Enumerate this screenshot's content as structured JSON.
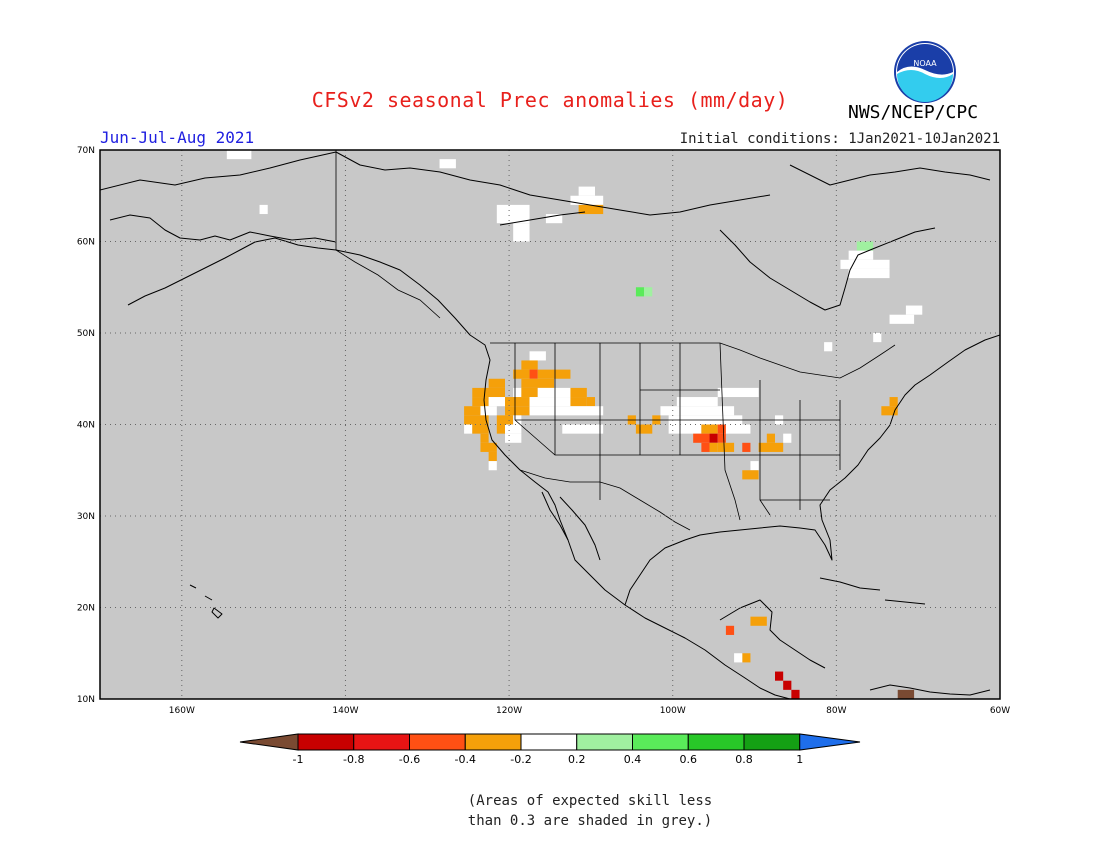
{
  "header": {
    "title": "CFSv2 seasonal Prec anomalies (mm/day)",
    "title_color": "#e8201c",
    "agency": "NWS/NCEP/CPC",
    "period": "Jun-Jul-Aug 2021",
    "period_color": "#2020e0",
    "initial_conditions": "Initial conditions: 1Jan2021-10Jan2021"
  },
  "logo": {
    "icon": "noaa-logo-icon",
    "text": "NOAA"
  },
  "map": {
    "lon_range": [
      -170,
      -60
    ],
    "lat_range": [
      10,
      70
    ],
    "background": "#c8c8c8",
    "lat_labels": [
      "70N",
      "60N",
      "50N",
      "40N",
      "30N",
      "20N",
      "10N"
    ],
    "lat_values": [
      70,
      60,
      50,
      40,
      30,
      20,
      10
    ],
    "lon_labels": [
      "160W",
      "140W",
      "120W",
      "100W",
      "80W",
      "60W"
    ],
    "lon_values": [
      -160,
      -140,
      -120,
      -100,
      -80,
      -60
    ],
    "anomaly_cells": [
      {
        "lon": -154,
        "lat": 69.5,
        "w": 3,
        "h": 1,
        "color": "#ffffff"
      },
      {
        "lon": -150,
        "lat": 63.5,
        "w": 1,
        "h": 1,
        "color": "#ffffff"
      },
      {
        "lon": -128,
        "lat": 68.5,
        "w": 2,
        "h": 1,
        "color": "#ffffff"
      },
      {
        "lon": -121,
        "lat": 63.5,
        "w": 4,
        "h": 2,
        "color": "#ffffff"
      },
      {
        "lon": -119,
        "lat": 61.5,
        "w": 2,
        "h": 2,
        "color": "#ffffff"
      },
      {
        "lon": -115,
        "lat": 62.5,
        "w": 2,
        "h": 1,
        "color": "#ffffff"
      },
      {
        "lon": -111,
        "lat": 65.5,
        "w": 2,
        "h": 1,
        "color": "#ffffff"
      },
      {
        "lon": -112,
        "lat": 64.5,
        "w": 4,
        "h": 1,
        "color": "#ffffff"
      },
      {
        "lon": -111,
        "lat": 63.5,
        "w": 3,
        "h": 1,
        "color": "#f5a00a"
      },
      {
        "lon": -104,
        "lat": 54.5,
        "w": 1,
        "h": 1,
        "color": "#5aeb5a"
      },
      {
        "lon": -103,
        "lat": 54.5,
        "w": 1,
        "h": 1,
        "color": "#a0f0a0"
      },
      {
        "lon": -77,
        "lat": 59.5,
        "w": 2,
        "h": 1,
        "color": "#a0f0a0"
      },
      {
        "lon": -78,
        "lat": 58.5,
        "w": 3,
        "h": 1,
        "color": "#ffffff"
      },
      {
        "lon": -79,
        "lat": 57.5,
        "w": 6,
        "h": 1,
        "color": "#ffffff"
      },
      {
        "lon": -78,
        "lat": 56.5,
        "w": 5,
        "h": 1,
        "color": "#ffffff"
      },
      {
        "lon": -71,
        "lat": 52.5,
        "w": 2,
        "h": 1,
        "color": "#ffffff"
      },
      {
        "lon": -73,
        "lat": 51.5,
        "w": 3,
        "h": 1,
        "color": "#ffffff"
      },
      {
        "lon": -81,
        "lat": 48.5,
        "w": 1,
        "h": 1,
        "color": "#ffffff"
      },
      {
        "lon": -75,
        "lat": 49.5,
        "w": 1,
        "h": 1,
        "color": "#ffffff"
      },
      {
        "lon": -117,
        "lat": 47.5,
        "w": 2,
        "h": 1,
        "color": "#ffffff"
      },
      {
        "lon": -118,
        "lat": 46.5,
        "w": 2,
        "h": 1,
        "color": "#f5a00a"
      },
      {
        "lon": -119,
        "lat": 45.5,
        "w": 2,
        "h": 1,
        "color": "#f5a00a"
      },
      {
        "lon": -117,
        "lat": 45.5,
        "w": 1,
        "h": 1,
        "color": "#ff5014"
      },
      {
        "lon": -116,
        "lat": 45.5,
        "w": 2,
        "h": 1,
        "color": "#f5a00a"
      },
      {
        "lon": -114,
        "lat": 45.5,
        "w": 2,
        "h": 1,
        "color": "#f5a00a"
      },
      {
        "lon": -118,
        "lat": 44.5,
        "w": 4,
        "h": 1,
        "color": "#f5a00a"
      },
      {
        "lon": -122,
        "lat": 44.5,
        "w": 2,
        "h": 1,
        "color": "#f5a00a"
      },
      {
        "lon": -124,
        "lat": 43.5,
        "w": 4,
        "h": 1,
        "color": "#f5a00a"
      },
      {
        "lon": -119,
        "lat": 43.5,
        "w": 1,
        "h": 1,
        "color": "#ffffff"
      },
      {
        "lon": -118,
        "lat": 43.5,
        "w": 2,
        "h": 1,
        "color": "#f5a00a"
      },
      {
        "lon": -116,
        "lat": 43.5,
        "w": 4,
        "h": 1,
        "color": "#ffffff"
      },
      {
        "lon": -112,
        "lat": 43.5,
        "w": 2,
        "h": 1,
        "color": "#f5a00a"
      },
      {
        "lon": -124,
        "lat": 42.5,
        "w": 2,
        "h": 1,
        "color": "#f5a00a"
      },
      {
        "lon": -122,
        "lat": 42.5,
        "w": 2,
        "h": 1,
        "color": "#ffffff"
      },
      {
        "lon": -120,
        "lat": 42.5,
        "w": 3,
        "h": 1,
        "color": "#f5a00a"
      },
      {
        "lon": -117,
        "lat": 42.5,
        "w": 5,
        "h": 1,
        "color": "#ffffff"
      },
      {
        "lon": -112,
        "lat": 42.5,
        "w": 2,
        "h": 1,
        "color": "#f5a00a"
      },
      {
        "lon": -110,
        "lat": 42.5,
        "w": 1,
        "h": 1,
        "color": "#f5a00a"
      },
      {
        "lon": -125,
        "lat": 41.5,
        "w": 2,
        "h": 1,
        "color": "#f5a00a"
      },
      {
        "lon": -123,
        "lat": 41.5,
        "w": 2,
        "h": 1,
        "color": "#ffffff"
      },
      {
        "lon": -120,
        "lat": 41.5,
        "w": 3,
        "h": 1,
        "color": "#f5a00a"
      },
      {
        "lon": -117,
        "lat": 41.5,
        "w": 3,
        "h": 1,
        "color": "#ffffff"
      },
      {
        "lon": -114,
        "lat": 41.5,
        "w": 6,
        "h": 1,
        "color": "#ffffff"
      },
      {
        "lon": -125,
        "lat": 40.5,
        "w": 3,
        "h": 1,
        "color": "#f5a00a"
      },
      {
        "lon": -121,
        "lat": 40.5,
        "w": 2,
        "h": 1,
        "color": "#f5a00a"
      },
      {
        "lon": -119,
        "lat": 40.5,
        "w": 1,
        "h": 1,
        "color": "#ffffff"
      },
      {
        "lon": -105,
        "lat": 40.5,
        "w": 1,
        "h": 1,
        "color": "#f5a00a"
      },
      {
        "lon": -102,
        "lat": 40.5,
        "w": 1,
        "h": 1,
        "color": "#f5a00a"
      },
      {
        "lon": -101,
        "lat": 41.5,
        "w": 9,
        "h": 1,
        "color": "#ffffff"
      },
      {
        "lon": -99,
        "lat": 42.5,
        "w": 5,
        "h": 1,
        "color": "#ffffff"
      },
      {
        "lon": -100,
        "lat": 40.5,
        "w": 9,
        "h": 1,
        "color": "#ffffff"
      },
      {
        "lon": -94,
        "lat": 43.5,
        "w": 5,
        "h": 1,
        "color": "#ffffff"
      },
      {
        "lon": -125,
        "lat": 39.5,
        "w": 1,
        "h": 1,
        "color": "#ffffff"
      },
      {
        "lon": -124,
        "lat": 39.5,
        "w": 2,
        "h": 1,
        "color": "#f5a00a"
      },
      {
        "lon": -121,
        "lat": 39.5,
        "w": 1,
        "h": 1,
        "color": "#f5a00a"
      },
      {
        "lon": -120,
        "lat": 39.5,
        "w": 2,
        "h": 1,
        "color": "#ffffff"
      },
      {
        "lon": -113,
        "lat": 39.5,
        "w": 5,
        "h": 1,
        "color": "#ffffff"
      },
      {
        "lon": -104,
        "lat": 39.5,
        "w": 2,
        "h": 1,
        "color": "#f5a00a"
      },
      {
        "lon": -100,
        "lat": 39.5,
        "w": 4,
        "h": 1,
        "color": "#ffffff"
      },
      {
        "lon": -96,
        "lat": 39.5,
        "w": 2,
        "h": 1,
        "color": "#f5a00a"
      },
      {
        "lon": -94,
        "lat": 39.5,
        "w": 1,
        "h": 1,
        "color": "#ff5014"
      },
      {
        "lon": -93,
        "lat": 39.5,
        "w": 3,
        "h": 1,
        "color": "#ffffff"
      },
      {
        "lon": -87,
        "lat": 40.5,
        "w": 1,
        "h": 1,
        "color": "#ffffff"
      },
      {
        "lon": -97,
        "lat": 38.5,
        "w": 2,
        "h": 1,
        "color": "#ff5014"
      },
      {
        "lon": -95,
        "lat": 38.5,
        "w": 1,
        "h": 1,
        "color": "#c80000"
      },
      {
        "lon": -94,
        "lat": 38.5,
        "w": 1,
        "h": 1,
        "color": "#ff5014"
      },
      {
        "lon": -123,
        "lat": 38.5,
        "w": 1,
        "h": 1,
        "color": "#f5a00a"
      },
      {
        "lon": -120,
        "lat": 38.5,
        "w": 2,
        "h": 1,
        "color": "#ffffff"
      },
      {
        "lon": -88,
        "lat": 38.5,
        "w": 1,
        "h": 1,
        "color": "#f5a00a"
      },
      {
        "lon": -86,
        "lat": 38.5,
        "w": 1,
        "h": 1,
        "color": "#ffffff"
      },
      {
        "lon": -96,
        "lat": 37.5,
        "w": 1,
        "h": 1,
        "color": "#ff5014"
      },
      {
        "lon": -95,
        "lat": 37.5,
        "w": 1,
        "h": 1,
        "color": "#f5a00a"
      },
      {
        "lon": -94,
        "lat": 37.5,
        "w": 2,
        "h": 1,
        "color": "#f5a00a"
      },
      {
        "lon": -91,
        "lat": 37.5,
        "w": 1,
        "h": 1,
        "color": "#ff5014"
      },
      {
        "lon": -89,
        "lat": 37.5,
        "w": 3,
        "h": 1,
        "color": "#f5a00a"
      },
      {
        "lon": -123,
        "lat": 37.5,
        "w": 2,
        "h": 1,
        "color": "#f5a00a"
      },
      {
        "lon": -122,
        "lat": 36.5,
        "w": 1,
        "h": 1,
        "color": "#f5a00a"
      },
      {
        "lon": -122,
        "lat": 35.5,
        "w": 1,
        "h": 1,
        "color": "#ffffff"
      },
      {
        "lon": -90,
        "lat": 35.5,
        "w": 1,
        "h": 1,
        "color": "#ffffff"
      },
      {
        "lon": -91,
        "lat": 34.5,
        "w": 2,
        "h": 1,
        "color": "#f5a00a"
      },
      {
        "lon": -73,
        "lat": 42.5,
        "w": 1,
        "h": 1,
        "color": "#f5a00a"
      },
      {
        "lon": -74,
        "lat": 41.5,
        "w": 2,
        "h": 1,
        "color": "#f5a00a"
      },
      {
        "lon": -90,
        "lat": 18.5,
        "w": 2,
        "h": 1,
        "color": "#f5a00a"
      },
      {
        "lon": -93,
        "lat": 17.5,
        "w": 1,
        "h": 1,
        "color": "#ff5014"
      },
      {
        "lon": -91,
        "lat": 14.5,
        "w": 1,
        "h": 1,
        "color": "#f5a00a"
      },
      {
        "lon": -92,
        "lat": 14.5,
        "w": 1,
        "h": 1,
        "color": "#ffffff"
      },
      {
        "lon": -87,
        "lat": 12.5,
        "w": 1,
        "h": 1,
        "color": "#c80000"
      },
      {
        "lon": -86,
        "lat": 11.5,
        "w": 1,
        "h": 1,
        "color": "#c80000"
      },
      {
        "lon": -85,
        "lat": 10.5,
        "w": 1,
        "h": 1,
        "color": "#c80000"
      },
      {
        "lon": -72,
        "lat": 10.5,
        "w": 2,
        "h": 1,
        "color": "#7a4a32"
      }
    ]
  },
  "colorbar": {
    "labels": [
      "-1",
      "-0.8",
      "-0.6",
      "-0.4",
      "-0.2",
      "0.2",
      "0.4",
      "0.6",
      "0.8",
      "1"
    ],
    "colors": [
      "#7a4a32",
      "#c80000",
      "#e81414",
      "#ff5014",
      "#f5a00a",
      "#ffffff",
      "#a0f0a0",
      "#5aeb5a",
      "#28c828",
      "#14a014",
      "#1e6eeb"
    ]
  },
  "footnote": {
    "line1": "(Areas of expected skill less",
    "line2": "than 0.3 are shaded in grey.)"
  }
}
